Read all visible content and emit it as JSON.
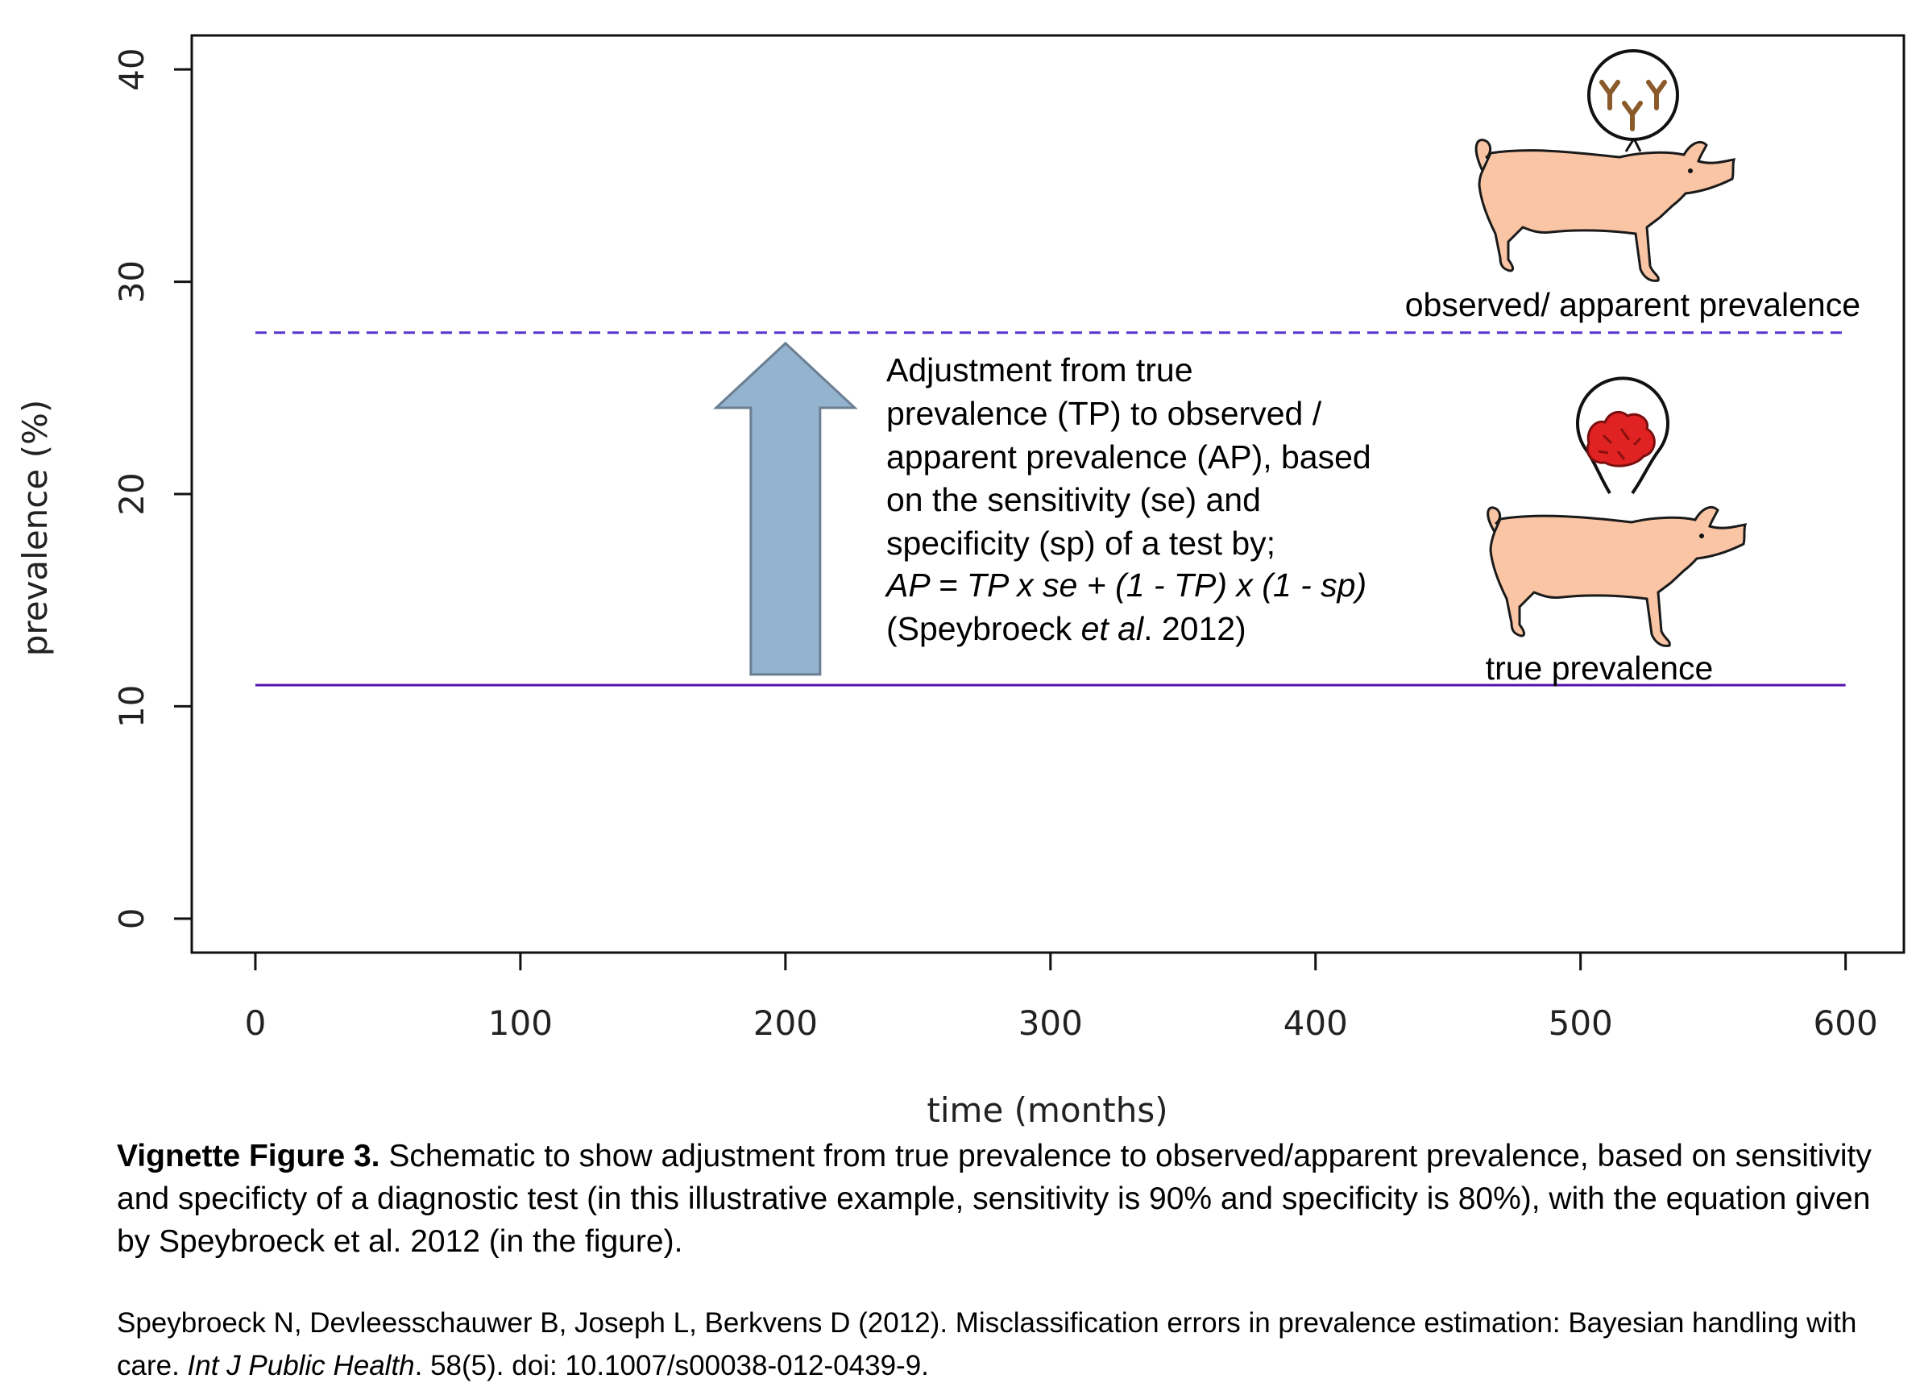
{
  "chart_data": {
    "type": "line",
    "xlabel": "time (months)",
    "ylabel": "prevalence (%)",
    "xlim": [
      -24,
      622
    ],
    "ylim": [
      -1.6,
      41.6
    ],
    "xticks": [
      0,
      100,
      200,
      300,
      400,
      500,
      600
    ],
    "yticks": [
      0,
      10,
      20,
      30,
      40
    ],
    "grid": false,
    "series": [
      {
        "name": "observed/ apparent prevalence",
        "style": "dashed",
        "color": "#5533cc",
        "x": [
          0,
          600
        ],
        "y": [
          27.6,
          27.6
        ]
      },
      {
        "name": "true prevalence",
        "style": "solid",
        "color": "#5511aa",
        "x": [
          0,
          600
        ],
        "y": [
          11.0,
          11.0
        ]
      }
    ],
    "arrow": {
      "x": 200,
      "y_from": 11.5,
      "y_to": 27.1,
      "color": "#94b3cf"
    },
    "annotation": {
      "lines": [
        "Adjustment from true",
        "prevalence (TP) to observed /",
        "apparent prevalence (AP), based",
        "on the sensitivity (se) and",
        "specificity (sp) of a test by;"
      ],
      "equation": "AP = TP x se + (1 - TP) x (1 - sp)",
      "citation_pre": "(Speybroeck ",
      "citation_it": "et al",
      "citation_post": ". 2012)"
    }
  },
  "caption": {
    "bold": "Vignette Figure 3.",
    "text": " Schematic to show adjustment from true prevalence to observed/apparent prevalence, based on sensitivity and specificty of a diagnostic test (in this illustrative example, sensitivity is 90% and specificity is 80%), with the equation given by Speybroeck et al. 2012 (in the figure)."
  },
  "reference": {
    "pre": "Speybroeck N, Devleesschauwer B, Joseph L, Berkvens D (2012).  Misclassification errors in prevalence estimation: Bayesian handling with care. ",
    "journal": "Int J Public Health",
    "post": ". 58(5). doi: 10.1007/s00038-012-0439-9."
  },
  "colors": {
    "pig": "#f9c5a4",
    "meat": "#e02222",
    "antibody": "#8b5a2b"
  }
}
